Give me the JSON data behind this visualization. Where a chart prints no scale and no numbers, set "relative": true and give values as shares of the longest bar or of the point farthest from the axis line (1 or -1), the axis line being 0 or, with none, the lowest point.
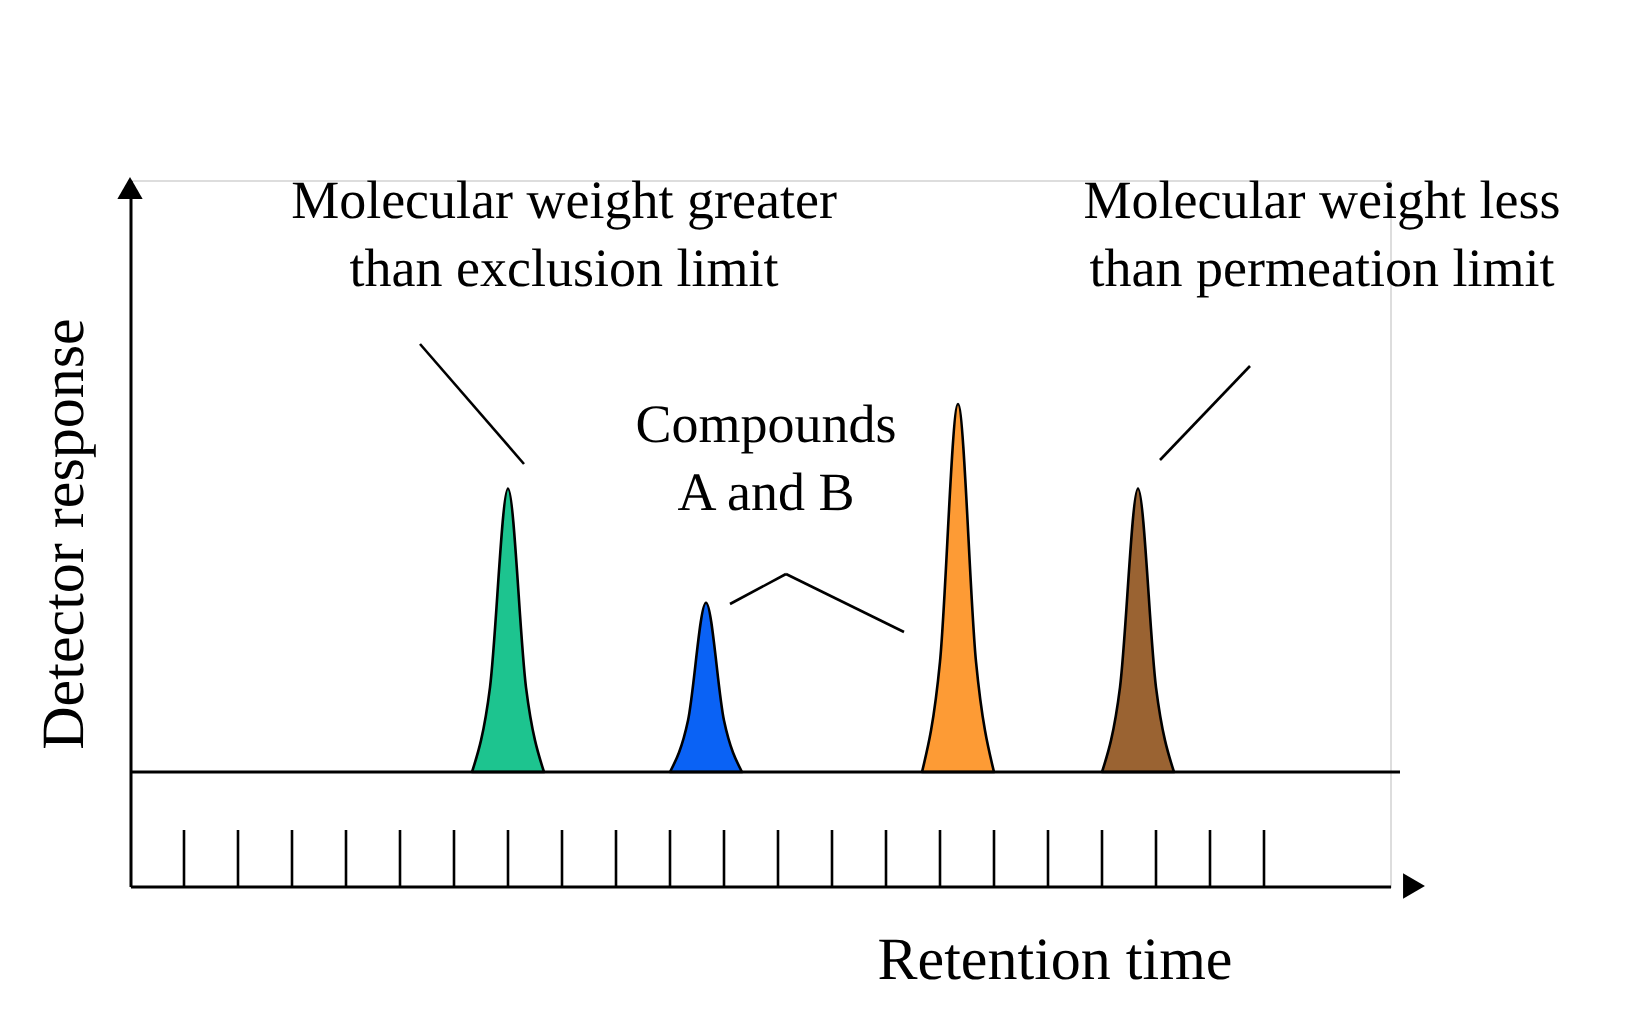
{
  "chart_data": {
    "type": "area",
    "relative": true,
    "xlabel": "Retention time",
    "ylabel": "Detector response",
    "categories": [
      null,
      null,
      null,
      null,
      null,
      null,
      null,
      null,
      null,
      null,
      null,
      null,
      null,
      null,
      null,
      null,
      null,
      null,
      null,
      null,
      null,
      null,
      null,
      null,
      null,
      null,
      null,
      null,
      null,
      null,
      null,
      null,
      null,
      null,
      null,
      null,
      null,
      null,
      null,
      null,
      null,
      null,
      null,
      null,
      null,
      null,
      null,
      null,
      null,
      null,
      null,
      null,
      null,
      null,
      null,
      null,
      null,
      null,
      null,
      null,
      null,
      null,
      null,
      null,
      null,
      null,
      null,
      null,
      null,
      null,
      null
    ],
    "series": [
      {
        "color": "#1dc48f",
        "values": [
          null,
          null,
          null,
          null,
          null,
          null,
          null,
          null,
          null,
          null,
          null,
          null,
          null,
          null,
          null,
          null,
          null,
          null,
          null,
          0,
          0.23,
          0.77,
          0.23,
          0,
          null,
          null,
          null,
          null,
          null,
          null,
          null,
          null,
          null,
          null,
          null,
          null,
          null,
          null,
          null,
          null,
          null,
          null,
          null,
          null,
          null,
          null,
          null,
          null,
          null,
          null,
          null,
          null,
          null,
          null,
          null,
          null,
          null,
          null,
          null,
          null,
          null,
          null,
          null,
          null,
          null,
          null,
          null,
          null,
          null,
          null,
          null
        ]
      },
      {
        "color": "#0a62f5",
        "values": [
          null,
          null,
          null,
          null,
          null,
          null,
          null,
          null,
          null,
          null,
          null,
          null,
          null,
          null,
          null,
          null,
          null,
          null,
          null,
          null,
          null,
          null,
          null,
          null,
          null,
          null,
          null,
          null,
          null,
          null,
          0,
          0.14,
          0.46,
          0.14,
          0,
          null,
          null,
          null,
          null,
          null,
          null,
          null,
          null,
          null,
          null,
          null,
          null,
          null,
          null,
          null,
          null,
          null,
          null,
          null,
          null,
          null,
          null,
          null,
          null,
          null,
          null,
          null,
          null,
          null,
          null,
          null,
          null,
          null,
          null,
          null,
          null
        ]
      },
      {
        "color": "#fd9b35",
        "values": [
          null,
          null,
          null,
          null,
          null,
          null,
          null,
          null,
          null,
          null,
          null,
          null,
          null,
          null,
          null,
          null,
          null,
          null,
          null,
          null,
          null,
          null,
          null,
          null,
          null,
          null,
          null,
          null,
          null,
          null,
          null,
          null,
          null,
          null,
          null,
          null,
          null,
          null,
          null,
          null,
          null,
          null,
          null,
          null,
          0,
          0.3,
          1,
          0.3,
          0,
          null,
          null,
          null,
          null,
          null,
          null,
          null,
          null,
          null,
          null,
          null,
          null,
          null,
          null,
          null,
          null,
          null,
          null,
          null,
          null,
          null,
          null
        ]
      },
      {
        "color": "#9a6332",
        "values": [
          null,
          null,
          null,
          null,
          null,
          null,
          null,
          null,
          null,
          null,
          null,
          null,
          null,
          null,
          null,
          null,
          null,
          null,
          null,
          null,
          null,
          null,
          null,
          null,
          null,
          null,
          null,
          null,
          null,
          null,
          null,
          null,
          null,
          null,
          null,
          null,
          null,
          null,
          null,
          null,
          null,
          null,
          null,
          null,
          null,
          null,
          null,
          null,
          null,
          null,
          null,
          null,
          null,
          null,
          0,
          0.23,
          0.77,
          0.23,
          0,
          null,
          null,
          null,
          null,
          null,
          null,
          null,
          null,
          null,
          null,
          null,
          null
        ]
      }
    ],
    "ref_lines": [
      {
        "axis": "y",
        "value": 0,
        "color": "#000000"
      }
    ],
    "annotations": [
      "Molecular weight greater\nthan exclusion limit",
      "Compounds\nA and B",
      "Molecular weight less\nthan permeation limit"
    ],
    "grid": false,
    "tick_labels": false
  }
}
